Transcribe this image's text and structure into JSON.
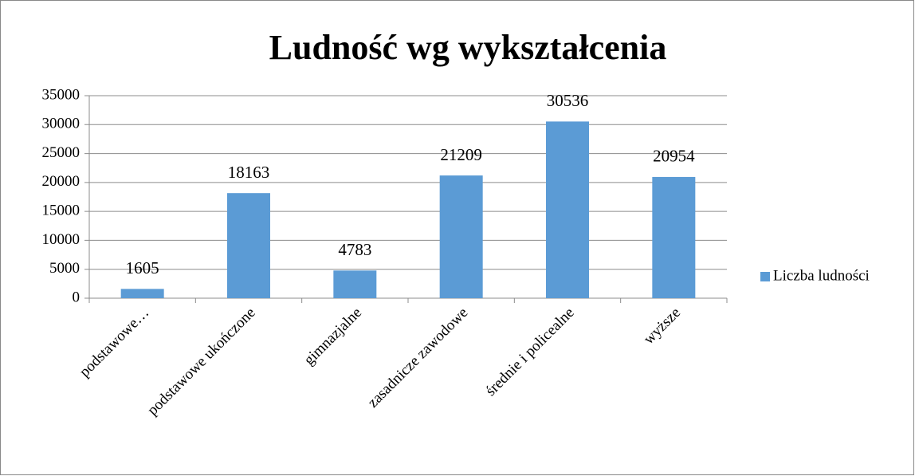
{
  "chart_data": {
    "type": "bar",
    "title": "Ludność wg wykształcenia",
    "categories": [
      "podstawowe…",
      "podstawowe ukończone",
      "gimnazjalne",
      "zasadnicze zawodowe",
      "średnie i policealne",
      "wyższe"
    ],
    "series": [
      {
        "name": "Liczba ludności",
        "color": "#5b9bd5",
        "values": [
          1605,
          18163,
          4783,
          21209,
          30536,
          20954
        ]
      }
    ],
    "ylim": [
      0,
      35000
    ],
    "yticks": [
      0,
      5000,
      10000,
      15000,
      20000,
      25000,
      30000,
      35000
    ],
    "grid": true,
    "data_labels": true,
    "legend": "right"
  }
}
